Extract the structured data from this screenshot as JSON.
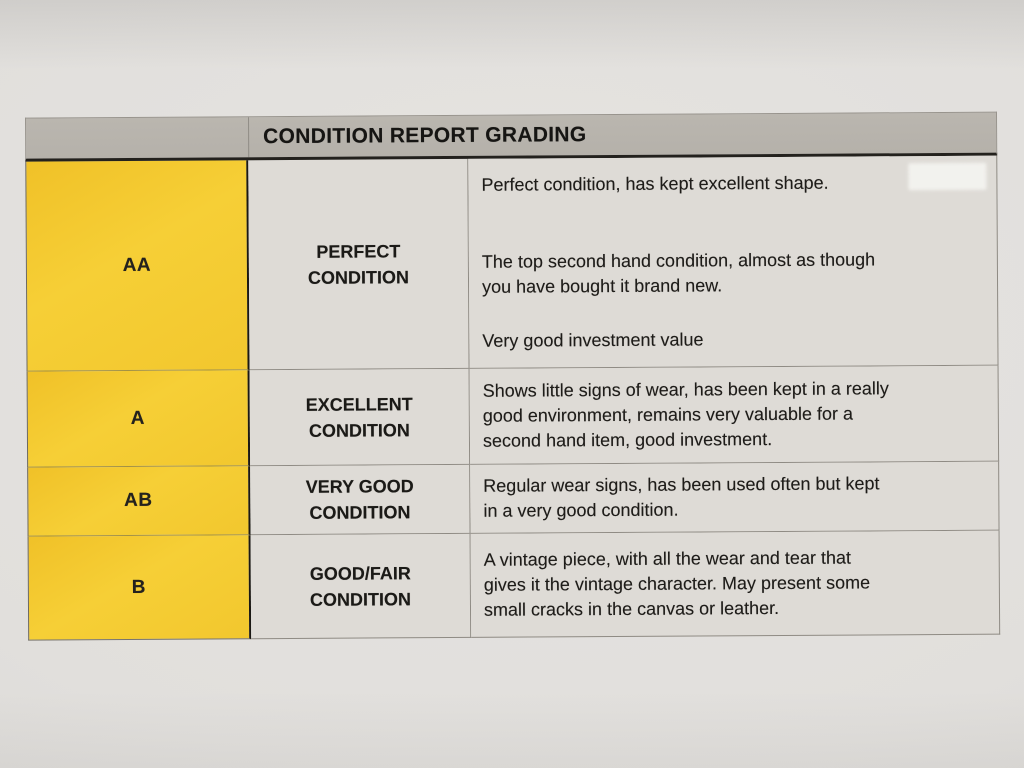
{
  "grading_table": {
    "header_title": "CONDITION REPORT GRADING",
    "rows": [
      {
        "grade": "AA",
        "condition_label": "PERFECT\nCONDITION",
        "description": [
          "Perfect condition, has kept excellent shape.",
          "The top second hand condition, almost as though\nyou have bought it brand new.",
          "Very good investment value"
        ]
      },
      {
        "grade": "A",
        "condition_label": "EXCELLENT\nCONDITION",
        "description": [
          "Shows little signs of wear, has been kept in a really\ngood environment, remains very valuable for a\nsecond hand item, good investment."
        ]
      },
      {
        "grade": "AB",
        "condition_label": "VERY GOOD\nCONDITION",
        "description": [
          "Regular wear signs, has been used often but kept\nin a very good condition."
        ]
      },
      {
        "grade": "B",
        "condition_label": "GOOD/FAIR\nCONDITION",
        "description": [
          "A vintage piece, with all the wear and tear that\ngives it the vintage character. May present some\nsmall cracks in the canvas or leather."
        ]
      }
    ],
    "colors": {
      "grade_column_yellow": "#F3C82F",
      "header_gray": "#B7B3AC",
      "cell_gray": "#DEDBD6",
      "paper_gray": "#E1DFDC",
      "text": "#1E1C19"
    }
  }
}
